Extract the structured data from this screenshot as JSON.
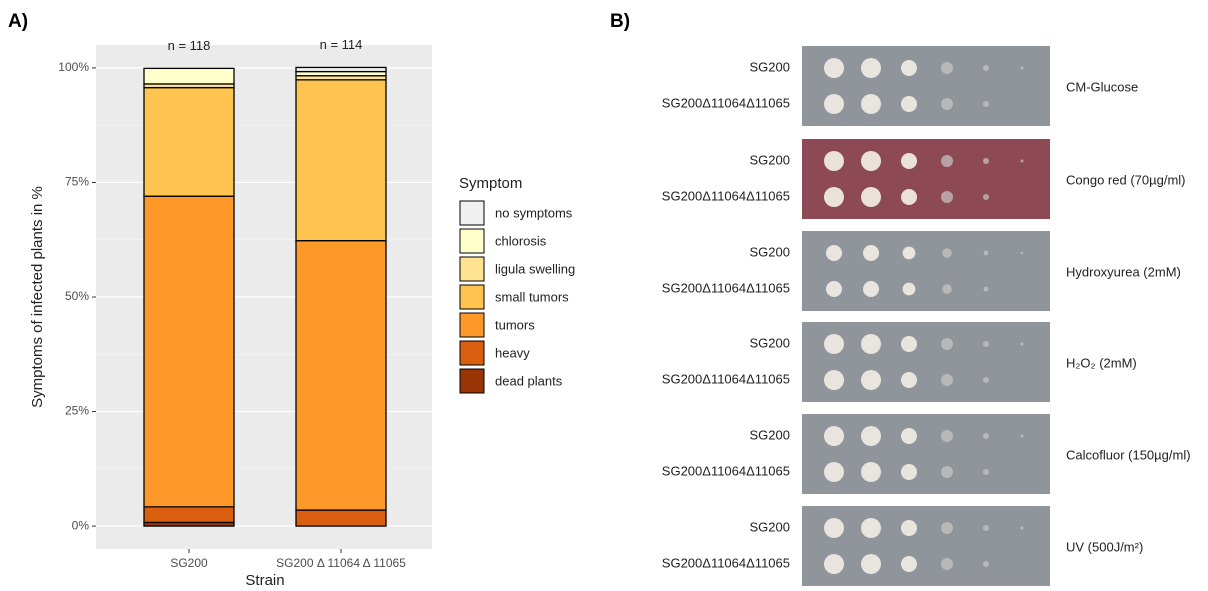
{
  "panel_labels": [
    "A)",
    "B)"
  ],
  "chart_data": {
    "type": "stacked_bar",
    "ylabel": "Symptoms of infected plants in %",
    "xlabel": "Strain",
    "legend_title": "Symptom",
    "categories": [
      "SG200",
      "SG200 Δ 11064 Δ 11065"
    ],
    "annotations": [
      "n = 118",
      "n = 114"
    ],
    "series": [
      {
        "name": "dead plants",
        "color": "#993404",
        "values": [
          0.8,
          0
        ]
      },
      {
        "name": "heavy",
        "color": "#d95f0e",
        "values": [
          3.4,
          3.5
        ]
      },
      {
        "name": "tumors",
        "color": "#fe9929",
        "values": [
          67.8,
          58.8
        ]
      },
      {
        "name": "small tumors",
        "color": "#fec44f",
        "values": [
          23.7,
          35.1
        ]
      },
      {
        "name": "ligula swelling",
        "color": "#fee391",
        "values": [
          0.8,
          0.9
        ]
      },
      {
        "name": "chlorosis",
        "color": "#ffffcc",
        "values": [
          3.4,
          0.9
        ]
      },
      {
        "name": "no symptoms",
        "color": "#f0f0f0",
        "values": [
          0,
          0.9
        ]
      }
    ],
    "ylim": [
      -5,
      105
    ],
    "yticks": [
      {
        "value": 0,
        "label": "0%"
      },
      {
        "value": 25,
        "label": "25%"
      },
      {
        "value": 50,
        "label": "50%"
      },
      {
        "value": 75,
        "label": "75%"
      },
      {
        "value": 100,
        "label": "100%"
      }
    ],
    "grid": true
  },
  "plates": [
    {
      "strains": [
        "SG200",
        "SG200Δ11064Δ11065"
      ],
      "condition": "CM-Glucose"
    },
    {
      "strains": [
        "SG200",
        "SG200Δ11064Δ11065"
      ],
      "condition": "Congo red  (70µg/ml)"
    },
    {
      "strains": [
        "SG200",
        "SG200Δ11064Δ11065"
      ],
      "condition": "Hydroxyurea (2mM)"
    },
    {
      "strains": [
        "SG200",
        "SG200Δ11064Δ11065"
      ],
      "condition": "H₂O₂ (2mM)"
    },
    {
      "strains": [
        "SG200",
        "SG200Δ11064Δ11065"
      ],
      "condition": "Calcofluor (150µg/ml)"
    },
    {
      "strains": [
        "SG200",
        "SG200Δ11064Δ11065"
      ],
      "condition": "UV (500J/m²)"
    }
  ]
}
